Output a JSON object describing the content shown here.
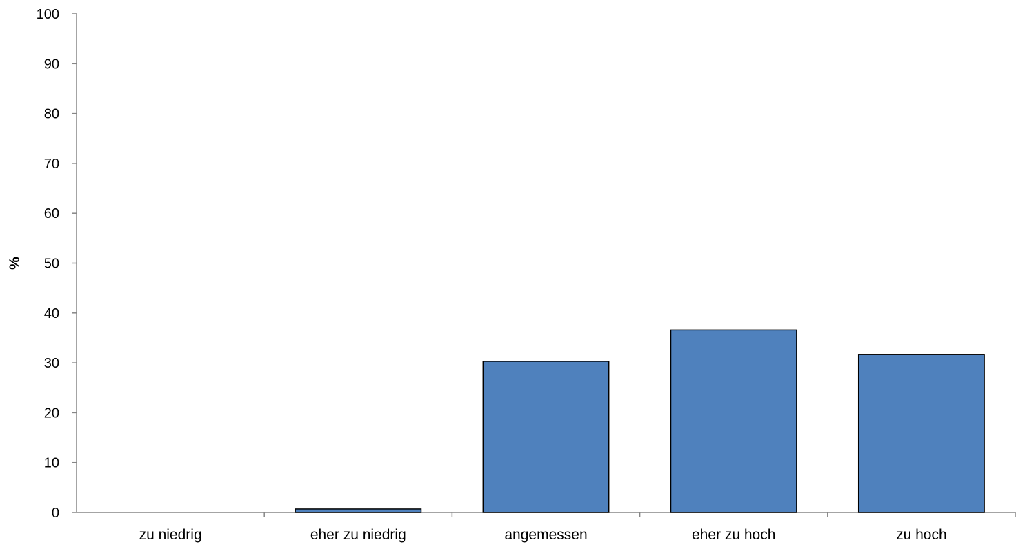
{
  "chart_data": {
    "type": "bar",
    "title": "",
    "xlabel": "",
    "ylabel": "%",
    "categories": [
      "zu niedrig",
      "eher zu niedrig",
      "angemessen",
      "eher zu hoch",
      "zu hoch"
    ],
    "values": [
      0,
      0.7,
      30.3,
      36.6,
      31.7
    ],
    "ylim": [
      0,
      100
    ],
    "yticks": [
      0,
      10,
      20,
      30,
      40,
      50,
      60,
      70,
      80,
      90,
      100
    ],
    "grid": false,
    "legend": "none",
    "colors": {
      "bar_fill": "#4f81bd",
      "bar_stroke": "#000000",
      "axis": "#868686"
    }
  }
}
